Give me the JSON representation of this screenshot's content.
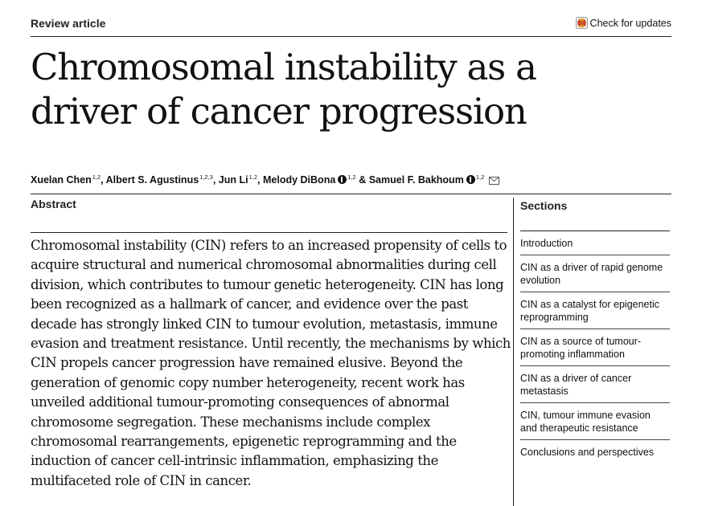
{
  "header": {
    "article_type": "Review article",
    "check_updates_label": "Check for updates"
  },
  "title_lines": [
    "Chromosomal instability as a",
    "driver of cancer progression"
  ],
  "authors": [
    {
      "name": "Xuelan Chen",
      "affiliations": "1,2",
      "separator": ", "
    },
    {
      "name": "Albert S. Agustinus",
      "affiliations": "1,2,3",
      "separator": ", "
    },
    {
      "name": "Jun Li",
      "affiliations": "1,2",
      "separator": ", "
    },
    {
      "name": "Melody DiBona",
      "affiliations": "1,2",
      "separator": " & "
    },
    {
      "name": "Samuel F. Bakhoum",
      "affiliations": "1,2",
      "separator": ""
    }
  ],
  "abstract": {
    "heading": "Abstract",
    "text": "Chromosomal instability (CIN) refers to an increased propensity of cells to acquire structural and numerical chromosomal abnormalities during cell division, which contributes to tumour genetic heterogeneity. CIN has long been recognized as a hallmark of cancer, and evidence over the past decade has strongly linked CIN to tumour evolution, metastasis, immune evasion and treatment resistance. Until recently, the mechanisms by which CIN propels cancer progression have remained elusive. Beyond the generation of genomic copy number heterogeneity, recent work has unveiled additional tumour-promoting consequences of abnormal chromosome segregation. These mechanisms include complex chromosomal rearrangements, epigenetic reprogramming and the induction of cancer cell-intrinsic inflammation, emphasizing the multifaceted role of CIN in cancer."
  },
  "sections": {
    "heading": "Sections",
    "items": [
      "Introduction",
      "CIN as a driver of rapid genome evolution",
      "CIN as a catalyst for epigenetic reprogramming",
      "CIN as a source of tumour-promoting inflammation",
      "CIN as a driver of cancer metastasis",
      "CIN, tumour immune evasion and therapeutic resistance",
      "Conclusions and perspectives"
    ]
  },
  "icons": {
    "check_updates": "check-for-updates-icon",
    "orcid": "orcid-icon",
    "email": "mail-icon"
  }
}
